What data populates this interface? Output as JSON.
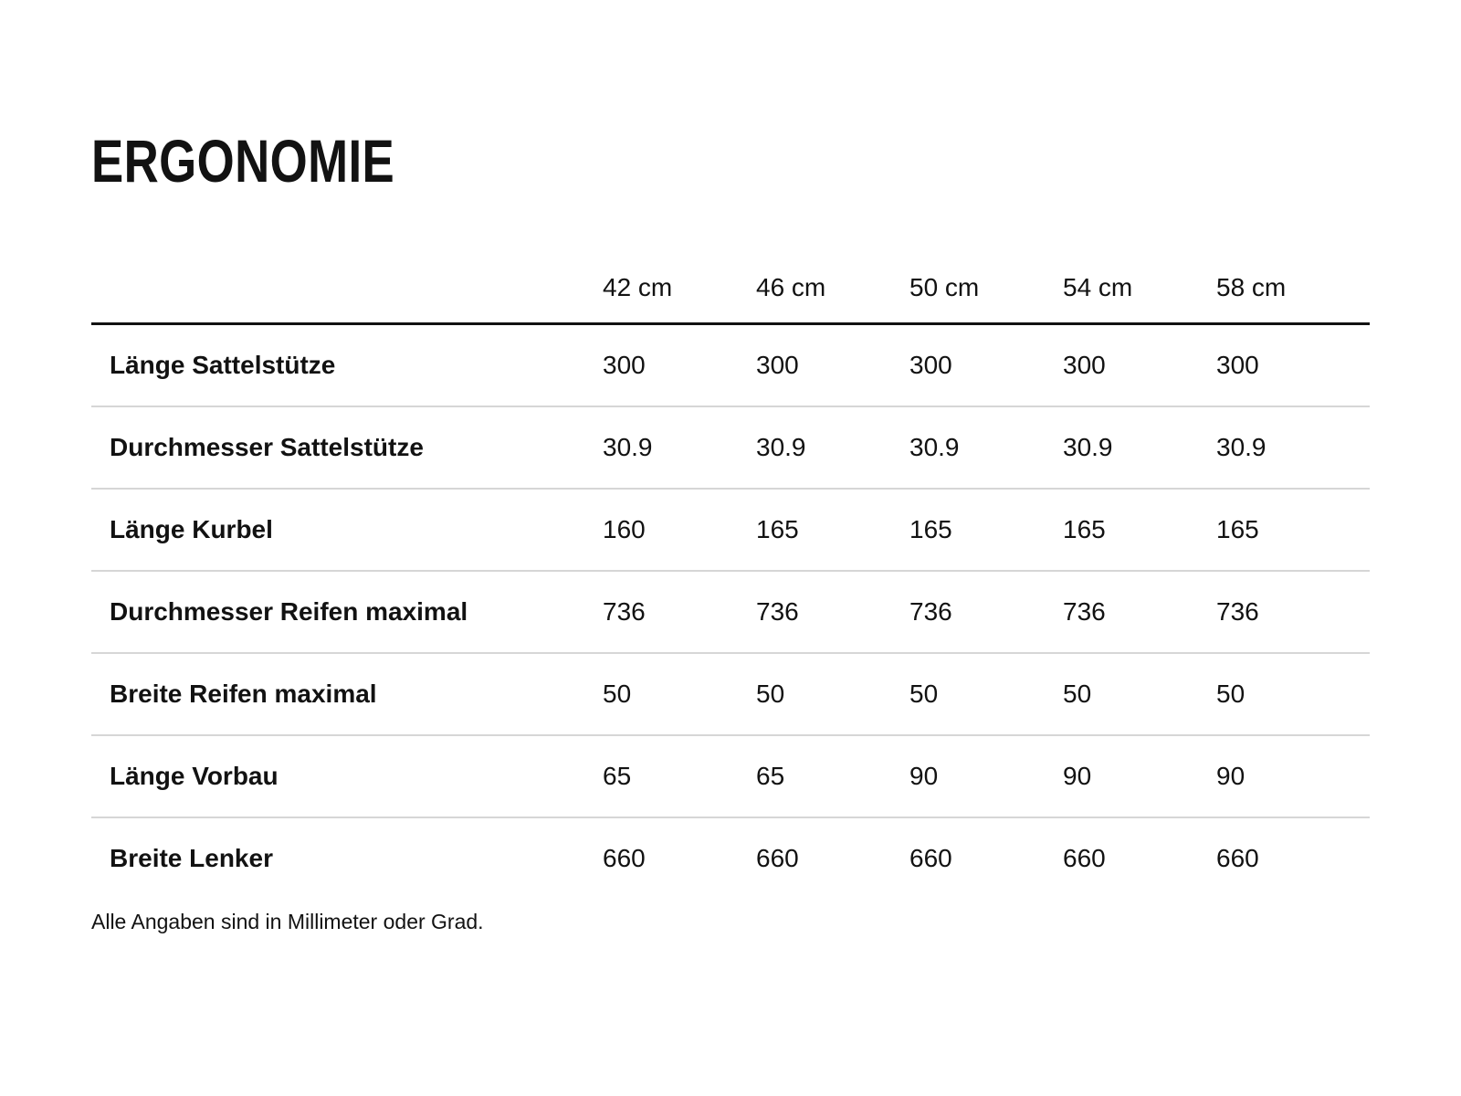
{
  "page": {
    "title": "ERGONOMIE",
    "footnote": "Alle Angaben sind in Millimeter oder Grad.",
    "colors": {
      "background": "#ffffff",
      "text": "#121212",
      "header_rule": "#121212",
      "row_divider": "#d6d6d6"
    }
  },
  "chart_data": {
    "type": "table",
    "title": "ERGONOMIE",
    "columns": [
      "",
      "42 cm",
      "46 cm",
      "50 cm",
      "54 cm",
      "58 cm"
    ],
    "rows": [
      {
        "label": "Länge Sattelstütze",
        "values": [
          "300",
          "300",
          "300",
          "300",
          "300"
        ]
      },
      {
        "label": "Durchmesser Sattelstütze",
        "values": [
          "30.9",
          "30.9",
          "30.9",
          "30.9",
          "30.9"
        ]
      },
      {
        "label": "Länge Kurbel",
        "values": [
          "160",
          "165",
          "165",
          "165",
          "165"
        ]
      },
      {
        "label": "Durchmesser Reifen maximal",
        "values": [
          "736",
          "736",
          "736",
          "736",
          "736"
        ]
      },
      {
        "label": "Breite Reifen maximal",
        "values": [
          "50",
          "50",
          "50",
          "50",
          "50"
        ]
      },
      {
        "label": "Länge Vorbau",
        "values": [
          "65",
          "65",
          "90",
          "90",
          "90"
        ]
      },
      {
        "label": "Breite Lenker",
        "values": [
          "660",
          "660",
          "660",
          "660",
          "660"
        ]
      }
    ],
    "note": "Alle Angaben sind in Millimeter oder Grad.",
    "layout": {
      "units": "mm or degrees",
      "grid": "horizontal dividers only",
      "value_alignment": "left"
    }
  }
}
